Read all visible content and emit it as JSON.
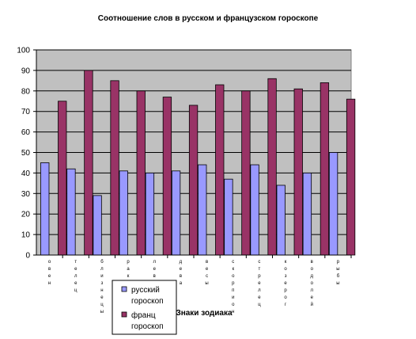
{
  "chart_data": {
    "type": "bar",
    "title": "Соотношение слов в русском и французском гороскопе",
    "xlabel": "Знаки зодиака",
    "ylabel": "",
    "ylim": [
      0,
      100
    ],
    "yticks": [
      0,
      10,
      20,
      30,
      40,
      50,
      60,
      70,
      80,
      90,
      100
    ],
    "grid": true,
    "legend_position": "bottom-left",
    "categories": [
      "овен",
      "телец",
      "близнецы",
      "рак",
      "лев",
      "дева",
      "весы",
      "скорпион",
      "стрелец",
      "козерог",
      "водолей",
      "рыбы"
    ],
    "series": [
      {
        "name": "русский гороскоп",
        "color": "#9999ff",
        "values": [
          45,
          42,
          29,
          41,
          40,
          41,
          44,
          37,
          44,
          34,
          40,
          50
        ]
      },
      {
        "name": "франц гороскоп",
        "color": "#993366",
        "values": [
          75,
          90,
          85,
          80,
          77,
          73,
          83,
          80,
          86,
          81,
          84,
          76
        ]
      }
    ],
    "colors": {
      "plot_background": "#c0c0c0"
    }
  }
}
